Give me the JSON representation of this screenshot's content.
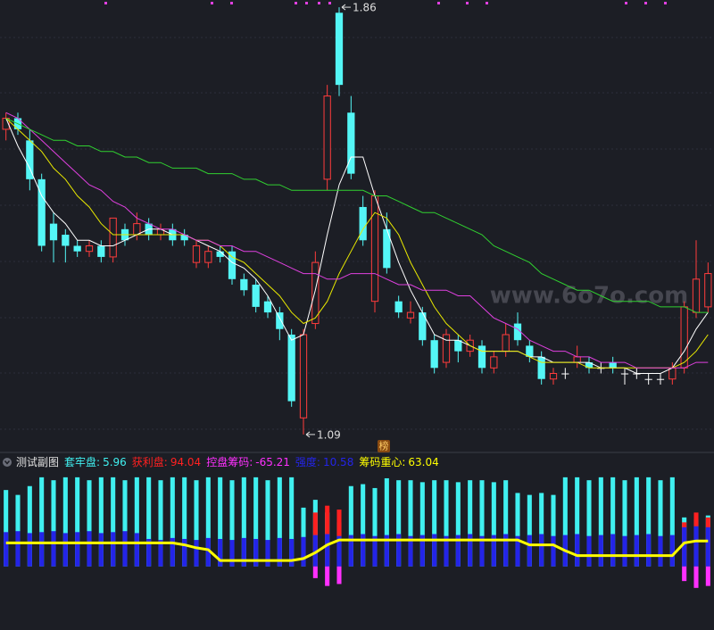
{
  "chart_data": [
    {
      "type": "candlestick",
      "open": [
        1.64,
        1.66,
        1.62,
        1.55,
        1.47,
        1.45,
        1.43,
        1.42,
        1.43,
        1.41,
        1.46,
        1.45,
        1.47,
        1.45,
        1.46,
        1.45,
        1.4,
        1.4,
        1.42,
        1.42,
        1.37,
        1.36,
        1.33,
        1.31,
        1.27,
        1.12,
        1.29,
        1.55,
        1.85,
        1.67,
        1.5,
        1.33,
        1.46,
        1.33,
        1.3,
        1.31,
        1.26,
        1.22,
        1.26,
        1.24,
        1.25,
        1.21,
        1.24,
        1.29,
        1.25,
        1.23,
        1.19,
        1.2,
        1.22,
        1.22,
        1.21,
        1.22,
        1.2,
        1.2,
        1.19,
        1.19,
        1.19,
        1.21,
        1.31,
        1.32
      ],
      "high": [
        1.67,
        1.67,
        1.64,
        1.56,
        1.49,
        1.46,
        1.44,
        1.44,
        1.44,
        1.48,
        1.47,
        1.49,
        1.48,
        1.47,
        1.47,
        1.46,
        1.44,
        1.43,
        1.43,
        1.43,
        1.38,
        1.37,
        1.34,
        1.32,
        1.28,
        1.28,
        1.42,
        1.72,
        1.86,
        1.7,
        1.52,
        1.53,
        1.49,
        1.34,
        1.33,
        1.32,
        1.27,
        1.28,
        1.27,
        1.27,
        1.26,
        1.24,
        1.29,
        1.31,
        1.26,
        1.24,
        1.21,
        1.21,
        1.25,
        1.23,
        1.22,
        1.23,
        1.21,
        1.21,
        1.2,
        1.2,
        1.22,
        1.33,
        1.44,
        1.4
      ],
      "low": [
        1.62,
        1.63,
        1.53,
        1.42,
        1.4,
        1.4,
        1.41,
        1.41,
        1.4,
        1.4,
        1.43,
        1.44,
        1.44,
        1.44,
        1.43,
        1.43,
        1.39,
        1.39,
        1.4,
        1.36,
        1.34,
        1.31,
        1.3,
        1.26,
        1.14,
        1.09,
        1.28,
        1.53,
        1.7,
        1.55,
        1.43,
        1.31,
        1.38,
        1.3,
        1.29,
        1.25,
        1.2,
        1.21,
        1.22,
        1.23,
        1.2,
        1.2,
        1.23,
        1.25,
        1.22,
        1.18,
        1.18,
        1.19,
        1.21,
        1.2,
        1.2,
        1.2,
        1.18,
        1.19,
        1.18,
        1.18,
        1.18,
        1.2,
        1.3,
        1.31
      ],
      "close": [
        1.66,
        1.64,
        1.55,
        1.43,
        1.44,
        1.43,
        1.42,
        1.43,
        1.41,
        1.48,
        1.44,
        1.47,
        1.45,
        1.46,
        1.44,
        1.44,
        1.43,
        1.42,
        1.41,
        1.37,
        1.35,
        1.32,
        1.31,
        1.28,
        1.15,
        1.27,
        1.4,
        1.7,
        1.72,
        1.56,
        1.44,
        1.52,
        1.39,
        1.31,
        1.31,
        1.26,
        1.21,
        1.27,
        1.24,
        1.26,
        1.21,
        1.23,
        1.27,
        1.26,
        1.23,
        1.19,
        1.2,
        1.2,
        1.23,
        1.21,
        1.21,
        1.21,
        1.2,
        1.2,
        1.19,
        1.19,
        1.21,
        1.32,
        1.37,
        1.38
      ],
      "up_color": "#ff3c3c",
      "down_color": "#54f6f6",
      "flat_color": "#ffffff",
      "ylim": [
        1.077,
        1.873
      ],
      "series": [
        {
          "color": "#ffffff",
          "values": [
            1.66,
            1.61,
            1.57,
            1.52,
            1.49,
            1.47,
            1.44,
            1.44,
            1.43,
            1.43,
            1.44,
            1.45,
            1.46,
            1.46,
            1.45,
            1.45,
            1.44,
            1.43,
            1.42,
            1.4,
            1.39,
            1.37,
            1.34,
            1.3,
            1.26,
            1.27,
            1.35,
            1.45,
            1.54,
            1.59,
            1.59,
            1.52,
            1.46,
            1.4,
            1.35,
            1.31,
            1.27,
            1.26,
            1.26,
            1.25,
            1.24,
            1.24,
            1.24,
            1.24,
            1.23,
            1.23,
            1.22,
            1.22,
            1.22,
            1.22,
            1.21,
            1.21,
            1.21,
            1.2,
            1.2,
            1.2,
            1.21,
            1.24,
            1.28,
            1.31
          ]
        },
        {
          "color": "#e8e800",
          "values": [
            1.66,
            1.64,
            1.62,
            1.6,
            1.57,
            1.55,
            1.52,
            1.5,
            1.47,
            1.45,
            1.45,
            1.45,
            1.45,
            1.45,
            1.45,
            1.45,
            1.44,
            1.44,
            1.43,
            1.41,
            1.4,
            1.38,
            1.36,
            1.34,
            1.31,
            1.29,
            1.3,
            1.33,
            1.38,
            1.42,
            1.46,
            1.49,
            1.48,
            1.45,
            1.4,
            1.36,
            1.32,
            1.29,
            1.27,
            1.25,
            1.24,
            1.24,
            1.24,
            1.24,
            1.23,
            1.22,
            1.22,
            1.22,
            1.22,
            1.21,
            1.21,
            1.21,
            1.21,
            1.21,
            1.21,
            1.21,
            1.21,
            1.22,
            1.24,
            1.27
          ]
        },
        {
          "color": "#e040e0",
          "values": [
            1.67,
            1.66,
            1.64,
            1.62,
            1.6,
            1.58,
            1.56,
            1.54,
            1.53,
            1.51,
            1.5,
            1.48,
            1.47,
            1.46,
            1.46,
            1.45,
            1.44,
            1.44,
            1.43,
            1.43,
            1.42,
            1.42,
            1.41,
            1.4,
            1.39,
            1.38,
            1.38,
            1.37,
            1.37,
            1.38,
            1.38,
            1.38,
            1.37,
            1.36,
            1.36,
            1.35,
            1.35,
            1.35,
            1.34,
            1.34,
            1.32,
            1.3,
            1.29,
            1.28,
            1.26,
            1.25,
            1.24,
            1.24,
            1.23,
            1.23,
            1.22,
            1.22,
            1.22,
            1.21,
            1.21,
            1.21,
            1.21,
            1.21,
            1.22,
            1.22
          ]
        },
        {
          "color": "#30d030",
          "values": [
            1.66,
            1.65,
            1.64,
            1.63,
            1.62,
            1.62,
            1.61,
            1.61,
            1.6,
            1.6,
            1.59,
            1.59,
            1.58,
            1.58,
            1.57,
            1.57,
            1.57,
            1.56,
            1.56,
            1.56,
            1.55,
            1.55,
            1.54,
            1.54,
            1.53,
            1.53,
            1.53,
            1.53,
            1.53,
            1.53,
            1.53,
            1.52,
            1.52,
            1.51,
            1.5,
            1.49,
            1.49,
            1.48,
            1.47,
            1.46,
            1.45,
            1.43,
            1.42,
            1.41,
            1.4,
            1.38,
            1.37,
            1.36,
            1.35,
            1.35,
            1.34,
            1.33,
            1.33,
            1.33,
            1.33,
            1.32,
            1.32,
            1.32,
            1.31,
            1.31
          ]
        }
      ],
      "watermark": "www.6o7o.com",
      "badge": "榜"
    },
    {
      "type": "bar",
      "title": "测试副图",
      "ylim": [
        -65,
        100
      ],
      "series": [
        {
          "name": "套牢盘:",
          "current": 5.96,
          "color": "#40f0f0",
          "type": "bar",
          "values": [
            78,
            73,
            82,
            91,
            88,
            91,
            91,
            88,
            91,
            91,
            88,
            91,
            91,
            88,
            91,
            91,
            88,
            91,
            91,
            88,
            91,
            91,
            88,
            91,
            91,
            60,
            68,
            55,
            45,
            82,
            84,
            80,
            90,
            88,
            88,
            86,
            88,
            88,
            86,
            88,
            88,
            86,
            88,
            75,
            73,
            75,
            73,
            91,
            91,
            88,
            91,
            91,
            88,
            91,
            91,
            88,
            91,
            50,
            48,
            52
          ]
        },
        {
          "name": "获利盘:",
          "current": 94.04,
          "color": "#ff2020",
          "type": "bar",
          "values": [
            null,
            null,
            null,
            null,
            null,
            null,
            null,
            null,
            null,
            null,
            null,
            null,
            null,
            null,
            null,
            null,
            null,
            null,
            null,
            null,
            null,
            null,
            null,
            null,
            null,
            null,
            55,
            62,
            58,
            null,
            null,
            null,
            null,
            null,
            null,
            null,
            null,
            null,
            null,
            null,
            null,
            null,
            null,
            null,
            null,
            null,
            null,
            null,
            null,
            null,
            null,
            null,
            null,
            null,
            null,
            null,
            null,
            45,
            55,
            50
          ]
        },
        {
          "name": "控盘筹码:",
          "current": -65.21,
          "color": "#ff30ff",
          "type": "bar",
          "values": [
            null,
            null,
            null,
            null,
            null,
            null,
            null,
            null,
            null,
            null,
            null,
            null,
            null,
            null,
            null,
            null,
            null,
            null,
            null,
            null,
            null,
            null,
            null,
            null,
            null,
            null,
            -12,
            -20,
            -18,
            null,
            null,
            null,
            null,
            null,
            null,
            null,
            null,
            null,
            null,
            null,
            null,
            null,
            null,
            null,
            null,
            null,
            null,
            null,
            null,
            null,
            null,
            null,
            null,
            null,
            null,
            null,
            null,
            -15,
            -22,
            -20
          ]
        },
        {
          "name": "强度:",
          "current": 10.58,
          "color": "#2424e8",
          "type": "bar",
          "values": [
            35,
            36,
            34,
            35,
            36,
            34,
            35,
            36,
            34,
            35,
            36,
            34,
            28,
            27,
            29,
            28,
            27,
            29,
            28,
            27,
            29,
            28,
            27,
            29,
            28,
            30,
            32,
            33,
            31,
            32,
            33,
            31,
            32,
            33,
            31,
            32,
            33,
            31,
            32,
            33,
            31,
            32,
            33,
            31,
            32,
            33,
            31,
            32,
            33,
            31,
            32,
            33,
            31,
            32,
            33,
            31,
            32,
            40,
            41,
            40
          ]
        },
        {
          "name": "筹码重心:",
          "current": 63.04,
          "color": "#ffff00",
          "type": "line",
          "values": [
            24,
            24,
            24,
            24,
            24,
            24,
            24,
            24,
            24,
            24,
            24,
            24,
            24,
            24,
            24,
            22,
            19,
            17,
            6,
            6,
            6,
            6,
            6,
            6,
            6,
            8,
            14,
            22,
            27,
            27,
            27,
            27,
            27,
            27,
            27,
            27,
            27,
            27,
            27,
            27,
            27,
            27,
            27,
            27,
            22,
            22,
            22,
            16,
            11,
            11,
            11,
            11,
            11,
            11,
            11,
            11,
            11,
            24,
            26,
            26
          ]
        }
      ]
    }
  ]
}
